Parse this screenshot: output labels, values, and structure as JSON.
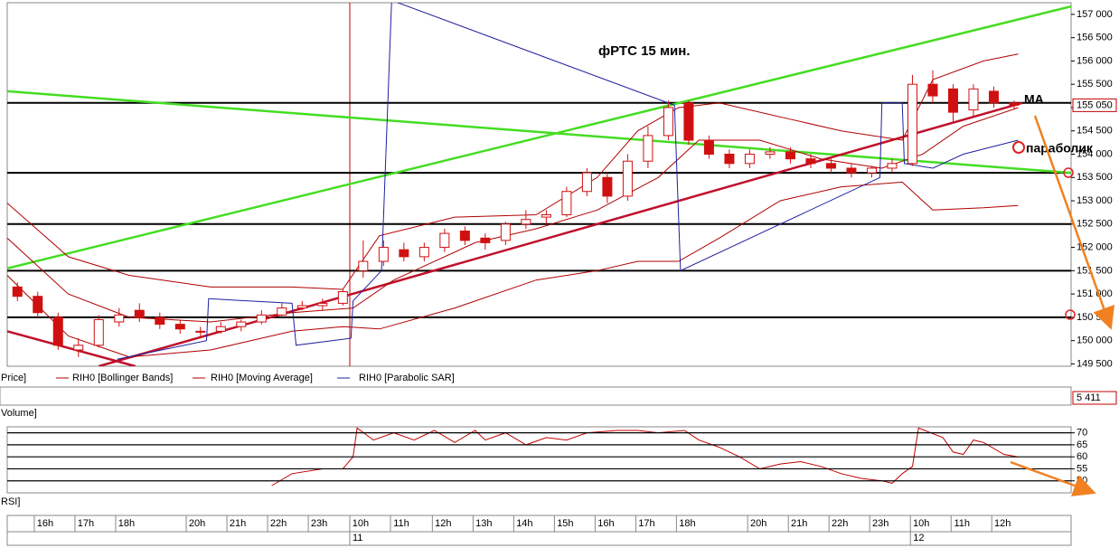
{
  "chart_data": [
    {
      "type": "candlestick",
      "title": "фРТС   15 мин.",
      "xlim": [
        0,
        52.3
      ],
      "ylim": [
        149450,
        157250
      ],
      "yticks": [
        {
          "value": 149500,
          "label": "149 500"
        },
        {
          "value": 150000,
          "label": "150 000"
        },
        {
          "value": 150500,
          "label": "150 500"
        },
        {
          "value": 151000,
          "label": "151 000"
        },
        {
          "value": 151500,
          "label": "151 500"
        },
        {
          "value": 152000,
          "label": "152 000"
        },
        {
          "value": 152500,
          "label": "152 500"
        },
        {
          "value": 153000,
          "label": "153 000"
        },
        {
          "value": 153500,
          "label": "153 500"
        },
        {
          "value": 154000,
          "label": "154 000"
        },
        {
          "value": 154500,
          "label": "154 500"
        },
        {
          "value": 155000,
          "label": "155 000"
        },
        {
          "value": 155500,
          "label": "155 500"
        },
        {
          "value": 156000,
          "label": "156 000"
        },
        {
          "value": 156500,
          "label": "156 500"
        },
        {
          "value": 157000,
          "label": "157 000"
        }
      ],
      "xticks": [
        {
          "value": 1.33,
          "label": "16h"
        },
        {
          "value": 3.33,
          "label": "17h"
        },
        {
          "value": 5.33,
          "label": "18h"
        },
        {
          "value": 8.8,
          "label": "20h"
        },
        {
          "value": 10.8,
          "label": "21h"
        },
        {
          "value": 12.8,
          "label": "22h"
        },
        {
          "value": 14.8,
          "label": "23h"
        },
        {
          "value": 16.84,
          "label": "10h"
        },
        {
          "value": 18.84,
          "label": "11h"
        },
        {
          "value": 20.9,
          "label": "12h"
        },
        {
          "value": 22.9,
          "label": "13h"
        },
        {
          "value": 24.9,
          "label": "14h"
        },
        {
          "value": 26.9,
          "label": "15h"
        },
        {
          "value": 28.9,
          "label": "16h"
        },
        {
          "value": 30.9,
          "label": "17h"
        },
        {
          "value": 32.9,
          "label": "18h"
        },
        {
          "value": 36.4,
          "label": "20h"
        },
        {
          "value": 38.4,
          "label": "21h"
        },
        {
          "value": 40.4,
          "label": "22h"
        },
        {
          "value": 42.4,
          "label": "23h"
        },
        {
          "value": 44.4,
          "label": "10h"
        },
        {
          "value": 46.4,
          "label": "11h"
        },
        {
          "value": 48.4,
          "label": "12h"
        }
      ],
      "date_labels": [
        {
          "value": 16.84,
          "label": "11"
        },
        {
          "value": 44.4,
          "label": "12"
        }
      ],
      "up_color": "#ffffff",
      "down_color": "#d01010",
      "candles": {
        "name": "Price]",
        "open": [
          151150,
          150950,
          150500,
          149800,
          149900,
          150400,
          150650,
          150500,
          150350,
          150200,
          150200,
          150300,
          150400,
          150550,
          150700,
          150750,
          150800,
          151500,
          151700,
          151950,
          151800,
          152000,
          152350,
          152200,
          152150,
          152500,
          152650,
          152700,
          153200,
          153500,
          153100,
          153850,
          154400,
          155100,
          154300,
          154000,
          153800,
          154000,
          154050,
          153900,
          153800,
          153700,
          153600,
          153700,
          153800,
          155500,
          155400,
          154950,
          155350,
          155100
        ],
        "high": [
          151250,
          151050,
          150600,
          150050,
          150550,
          150700,
          150800,
          150600,
          150450,
          150300,
          150400,
          150450,
          150650,
          150800,
          150850,
          150900,
          151100,
          152150,
          152150,
          152100,
          152100,
          152400,
          152450,
          152300,
          152550,
          152800,
          152800,
          153300,
          153700,
          153600,
          154000,
          154600,
          155150,
          155150,
          154400,
          154100,
          154100,
          154150,
          154150,
          154000,
          153900,
          153800,
          153750,
          153900,
          155700,
          155800,
          155500,
          155500,
          155450,
          155150
        ],
        "low": [
          150850,
          150500,
          149800,
          149650,
          149850,
          150300,
          150400,
          150250,
          150150,
          150100,
          150150,
          150200,
          150350,
          150500,
          150650,
          150650,
          150750,
          151350,
          151600,
          151700,
          151700,
          151900,
          152050,
          151950,
          152050,
          152400,
          152500,
          152650,
          153100,
          152950,
          153000,
          153700,
          154300,
          154200,
          153900,
          153700,
          153700,
          153900,
          153800,
          153700,
          153600,
          153500,
          153500,
          153600,
          153750,
          155100,
          154700,
          154800,
          155000,
          154950
        ],
        "close": [
          150950,
          150600,
          149900,
          149900,
          150450,
          150550,
          150500,
          150350,
          150250,
          150200,
          150300,
          150400,
          150550,
          150700,
          150750,
          150800,
          151050,
          151700,
          152000,
          151800,
          152000,
          152300,
          152150,
          152100,
          152500,
          152600,
          152700,
          153200,
          153600,
          153100,
          153850,
          154400,
          155000,
          154300,
          154000,
          153800,
          154000,
          154050,
          153900,
          153800,
          153700,
          153600,
          153700,
          153800,
          155500,
          155250,
          154900,
          155400,
          155100,
          155050
        ]
      },
      "series": [
        {
          "name": "RIH0 [Bollinger Bands]",
          "color": "#b00000",
          "x": [
            0,
            3,
            6,
            10,
            14,
            16.5,
            18.3,
            22,
            26,
            29,
            31,
            33,
            35,
            38,
            41,
            44,
            45.5,
            48,
            49.7
          ],
          "upper": [
            152950,
            151800,
            151400,
            151150,
            151150,
            151100,
            152250,
            152650,
            152700,
            153500,
            154500,
            155000,
            155100,
            154800,
            154500,
            154300,
            155600,
            156000,
            156150
          ],
          "lower": [
            151400,
            150100,
            149650,
            149800,
            150200,
            150300,
            150250,
            150700,
            151300,
            151500,
            151700,
            151700,
            152200,
            153000,
            153300,
            153400,
            152800,
            152850,
            152900
          ]
        },
        {
          "name": "RIH0 [Moving Average]",
          "color": "#b00000",
          "x": [
            0,
            3,
            6,
            10,
            14,
            17,
            19,
            23,
            26,
            29,
            32,
            34,
            37,
            40,
            43,
            45,
            47,
            49.7
          ],
          "values": [
            152200,
            151000,
            150500,
            150400,
            150600,
            150700,
            151300,
            152100,
            152400,
            152800,
            153500,
            154300,
            154300,
            153900,
            153700,
            154000,
            154600,
            155000
          ]
        },
        {
          "name": "RIH0 [Parabolic SAR]",
          "color": "#2020a0",
          "x": [
            5.4,
            9.8,
            9.9,
            14.0,
            14.2,
            16.9,
            17.0,
            18.4,
            18.9,
            32.8,
            33.1,
            42.9,
            43.0,
            44.0,
            44.1,
            45.5,
            47,
            49.7
          ],
          "values": [
            149600,
            150000,
            150900,
            150800,
            149900,
            150050,
            150850,
            151500,
            157300,
            155050,
            151500,
            153500,
            155100,
            155100,
            153800,
            153700,
            154000,
            154300
          ]
        }
      ],
      "levels": [
        155100,
        153600,
        152500,
        151500,
        150500
      ],
      "level_color": "#000000",
      "trend_lines": [
        {
          "color": "#44dd22",
          "x": [
            0,
            52.3
          ],
          "y": [
            151550,
            157170
          ]
        },
        {
          "color": "#44dd22",
          "x": [
            0,
            52.3
          ],
          "y": [
            155350,
            153600
          ]
        },
        {
          "color": "#c0102a",
          "x": [
            4.5,
            49.9
          ],
          "y": [
            149450,
            155100
          ]
        },
        {
          "color": "#c0102a",
          "x": [
            0,
            6.3
          ],
          "y": [
            150200,
            149450
          ]
        }
      ],
      "current_value": {
        "value": 155050,
        "label": "155 050"
      },
      "annotations": [
        "MA",
        "параболик"
      ]
    },
    {
      "type": "volume",
      "title": "Volume]",
      "last_value": {
        "value": 5411,
        "label": "5 411"
      }
    },
    {
      "type": "line",
      "title": "RSI]",
      "xlim": [
        0,
        52.3
      ],
      "ylim": [
        45,
        72.5
      ],
      "yticks": [
        50,
        55,
        60,
        65,
        70
      ],
      "grid": true,
      "series": [
        {
          "color": "#c00000",
          "x": [
            13.0,
            14.0,
            15.5,
            16.5,
            17.0,
            17.2,
            18,
            19,
            20,
            21,
            22,
            23,
            23.5,
            24.5,
            25.5,
            26.5,
            27.5,
            28.5,
            30,
            31,
            32,
            33.3,
            34,
            35,
            36,
            37,
            38,
            39,
            40,
            41,
            42,
            43,
            43.5,
            44,
            44.5,
            44.8,
            46,
            46.5,
            47,
            47.5,
            48,
            49,
            49.7
          ],
          "values": [
            48,
            53,
            55,
            55,
            60,
            72,
            67,
            70,
            67,
            71,
            66,
            71,
            67,
            70,
            65,
            68,
            67,
            70,
            71,
            71,
            70,
            71,
            67,
            64,
            60,
            55,
            57,
            58,
            56,
            53,
            51,
            50,
            49,
            53,
            56,
            72,
            68,
            62,
            61,
            67,
            66,
            61,
            60
          ]
        }
      ]
    }
  ]
}
